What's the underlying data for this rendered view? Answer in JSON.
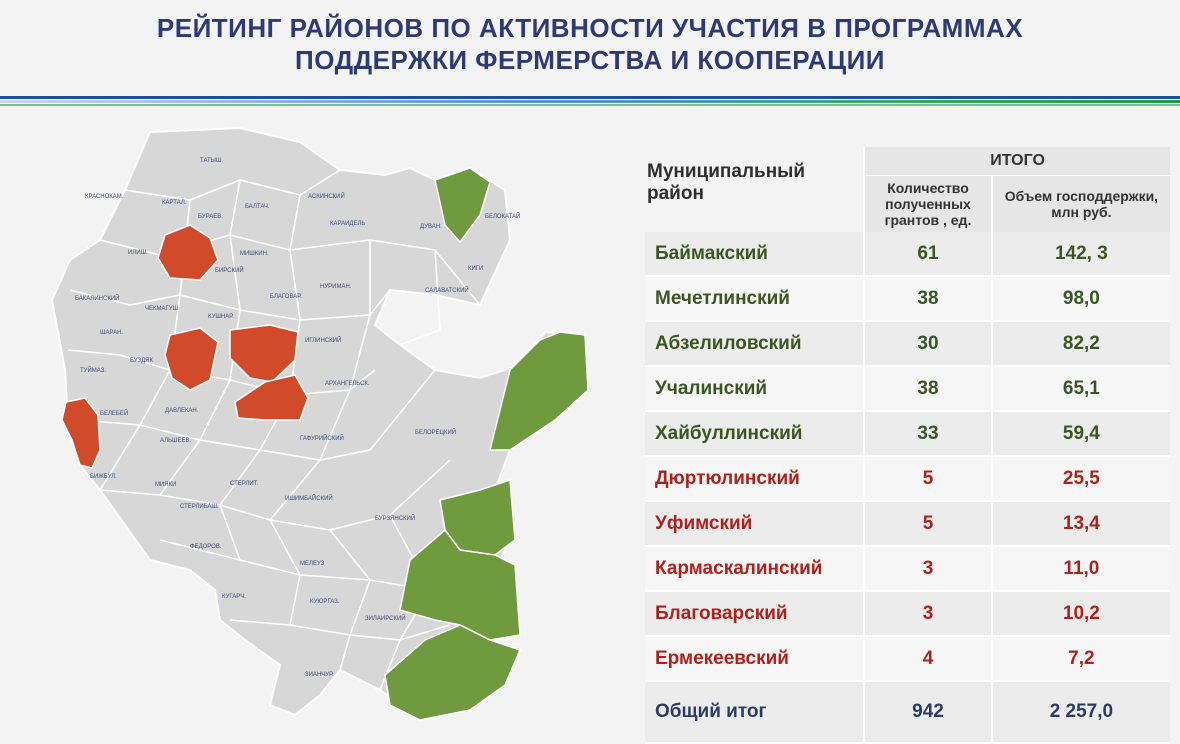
{
  "title": {
    "line1": "РЕЙТИНГ РАЙОНОВ ПО АКТИВНОСТИ УЧАСТИЯ В ПРОГРАММАХ",
    "line2": "ПОДДЕРЖКИ ФЕРМЕРСТВА И КООПЕРАЦИИ"
  },
  "colors": {
    "title": "#2e3a78",
    "green_region": "#6f9a3e",
    "red_region": "#d14a2a",
    "map_base": "#d7d7d7"
  },
  "table": {
    "col_district": "Муниципальный район",
    "col_group": "ИТОГО",
    "col_grants": "Количество полученных грантов , ед.",
    "col_support": "Объем господдержки, млн руб.",
    "rows": [
      {
        "district": "Баймакский",
        "grants": "61",
        "support": "142, 3",
        "status": "green"
      },
      {
        "district": "Мечетлинский",
        "grants": "38",
        "support": "98,0",
        "status": "green"
      },
      {
        "district": "Абзелиловский",
        "grants": "30",
        "support": "82,2",
        "status": "green"
      },
      {
        "district": "Учалинский",
        "grants": "38",
        "support": "65,1",
        "status": "green"
      },
      {
        "district": "Хайбуллинский",
        "grants": "33",
        "support": "59,4",
        "status": "green"
      },
      {
        "district": "Дюртюлинский",
        "grants": "5",
        "support": "25,5",
        "status": "red"
      },
      {
        "district": "Уфимский",
        "grants": "5",
        "support": "13,4",
        "status": "red"
      },
      {
        "district": "Кармаскалинский",
        "grants": "3",
        "support": "11,0",
        "status": "red"
      },
      {
        "district": "Благоварский",
        "grants": "3",
        "support": "10,2",
        "status": "red"
      },
      {
        "district": "Ермекеевский",
        "grants": "4",
        "support": "7,2",
        "status": "red"
      }
    ],
    "total": {
      "label": "Общий итог",
      "grants": "942",
      "support": "2 257,0"
    }
  },
  "map": {
    "labels": [
      "ТАТЫШ.",
      "КРАСНОКАМ.",
      "КАРТАЛ.",
      "БУРАЕВ.",
      "БАЛТАЧ.",
      "АСКИНСКИЙ",
      "КАРАИДЕЛЬ",
      "БЕЛОКАТАЙ",
      "ДУВАН.",
      "КИГИ",
      "САЛАВАТСКИЙ",
      "ИЛИШ.",
      "МИШКИН.",
      "БИРСКИЙ",
      "НУРИМАН.",
      "БЛАГОВАР.",
      "БАКАЛИНСКИЙ",
      "ЧЕКМАГУШ",
      "КУШНАР.",
      "ШАРАН.",
      "БУЗДЯК",
      "ТУЙМАЗ.",
      "ИГЛИНСКИЙ",
      "АРХАНГЕЛЬСК.",
      "БЕЛЕБЕЙ",
      "ДАВЛЕКАН.",
      "ГАФУРИЙСКИЙ",
      "БЕЛОРЕЦКИЙ",
      "АЛЬШЕЕВ.",
      "БИЖБУЛ.",
      "МИЯКИ",
      "СТЕРЛИТ.",
      "ИШИМБАЙСКИЙ",
      "СТЕРЛИБАШ.",
      "БУРЗЯНСКИЙ",
      "ФЕДОРОВ.",
      "МЕЛЕУЗ",
      "КУГАРЧ.",
      "КУЮРГАЗ.",
      "ЗИЛАИРСКИЙ",
      "ЗИАНЧУР."
    ]
  }
}
